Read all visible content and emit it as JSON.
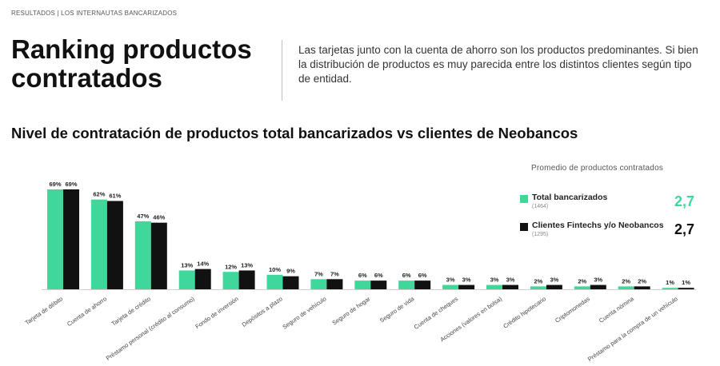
{
  "header": {
    "breadcrumb": "RESULTADOS | LOS INTERNAUTAS BANCARIZADOS",
    "title": "Ranking productos contratados",
    "intro": "Las tarjetas junto con la cuenta de ahorro son los productos predominantes. Si bien la distribución de productos es muy parecida entre los distintos clientes según tipo de entidad."
  },
  "colors": {
    "green": "#3fd89a",
    "black": "#111111"
  },
  "legend": {
    "title": "Promedio de productos contratados",
    "items": [
      {
        "label": "Total bancarizados",
        "n": "(1464)",
        "avg": "2,7",
        "color": "#3fd89a"
      },
      {
        "label": "Clientes Fintechs y/o Neobancos",
        "n": "(1295)",
        "avg": "2,7",
        "color": "#111111"
      }
    ]
  },
  "chart_data": {
    "type": "bar",
    "title": "Nivel de contratación de productos total bancarizados vs clientes de Neobancos",
    "categories": [
      "Tarjeta de débito",
      "Cuenta de ahorro",
      "Tarjeta de crédito",
      "Préstamo personal (crédito al consumo)",
      "Fondo de inversión",
      "Depósitos a plazo",
      "Seguro de vehículo",
      "Seguro de hogar",
      "Seguro de vida",
      "Cuenta de cheques",
      "Acciones (valores en bolsa)",
      "Crédito hipotecario",
      "Criptomonedas",
      "Cuenta nómina",
      "Préstamo para la compra de un vehículo"
    ],
    "series": [
      {
        "name": "Total bancarizados",
        "values": [
          69,
          62,
          47,
          13,
          12,
          10,
          7,
          6,
          6,
          3,
          3,
          2,
          2,
          2,
          1
        ],
        "labels": [
          "69%",
          "62%",
          "47%",
          "13%",
          "12%",
          "10%",
          "7%",
          "6%",
          "6%",
          "3%",
          "3%",
          "2%",
          "2%",
          "2%",
          "1%"
        ]
      },
      {
        "name": "Clientes Fintechs y/o Neobancos",
        "values": [
          69,
          61,
          46,
          14,
          13,
          9,
          7,
          6,
          6,
          3,
          3,
          3,
          3,
          2,
          1
        ],
        "labels": [
          "69%",
          "61%",
          "46%",
          "14%",
          "13%",
          "9%",
          "7%",
          "6%",
          "6%",
          "3%",
          "3%",
          "3%",
          "3%",
          "2%",
          "1%"
        ]
      }
    ],
    "ylim": [
      0,
      69
    ],
    "grid": false,
    "legend_position": "right"
  }
}
